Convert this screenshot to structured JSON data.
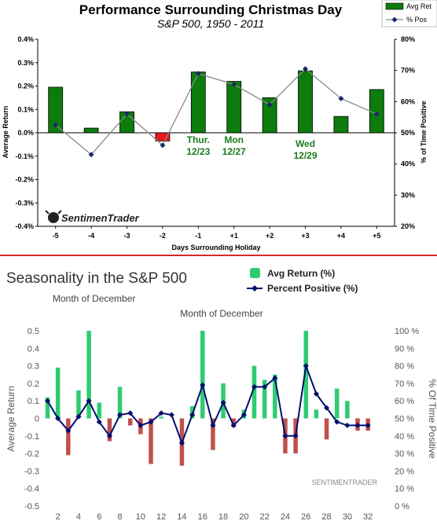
{
  "chart_data": [
    {
      "type": "bar",
      "title": "Performance Surrounding Christmas Day",
      "subtitle": "S&P 500, 1950 - 2011",
      "xlabel": "Days Surrounding Holiday",
      "ylabel": "Average Return",
      "y2label": "% of Time Positive",
      "categories": [
        "-5",
        "-4",
        "-3",
        "-2",
        "-1",
        "+1",
        "+2",
        "+3",
        "+4",
        "+5"
      ],
      "ylim": [
        -0.4,
        0.4
      ],
      "yticks": [
        "0.4%",
        "0.3%",
        "0.2%",
        "0.1%",
        "0.0%",
        "-0.1%",
        "-0.2%",
        "-0.3%",
        "-0.4%"
      ],
      "y2lim": [
        20,
        80
      ],
      "y2ticks": [
        "80%",
        "70%",
        "60%",
        "50%",
        "40%",
        "30%",
        "20%"
      ],
      "series": [
        {
          "name": "Avg Ret",
          "type": "bar",
          "values": [
            0.195,
            0.02,
            0.09,
            -0.035,
            0.26,
            0.22,
            0.15,
            0.265,
            0.07,
            0.185
          ]
        },
        {
          "name": "% Pos",
          "type": "line",
          "values": [
            52.5,
            43,
            56,
            46,
            69,
            65.5,
            59,
            70.5,
            61,
            56
          ]
        }
      ],
      "colors": {
        "positive": "#0c7c0c",
        "negative": "#e8191b",
        "line": "#8a8a8a",
        "marker": "#1a2a6c"
      },
      "annotations": [
        {
          "text": [
            "Thur.",
            "12/23"
          ],
          "category": "-1"
        },
        {
          "text": [
            "Mon",
            "12/27"
          ],
          "category": "+1"
        },
        {
          "text": [
            "Wed",
            "12/29"
          ],
          "category": "+3"
        }
      ],
      "logo": "SentimenTrader",
      "legend": "top-right",
      "grid": false
    },
    {
      "type": "bar",
      "title": "Seasonality in the S&P 500",
      "subtitle": "Month of December",
      "subtitle2": "Month of December",
      "xlabel": "",
      "ylabel": "Average Return",
      "y2label": "% Of Time Positive",
      "x": [
        1,
        2,
        3,
        4,
        5,
        6,
        7,
        8,
        9,
        10,
        11,
        12,
        13,
        14,
        15,
        16,
        17,
        18,
        19,
        20,
        21,
        22,
        23,
        24,
        25,
        26,
        27,
        28,
        29,
        30,
        31,
        32
      ],
      "xticks": [
        "2",
        "4",
        "6",
        "8",
        "10",
        "12",
        "14",
        "16",
        "18",
        "20",
        "22",
        "24",
        "26",
        "28",
        "30",
        "32"
      ],
      "ylim": [
        -0.5,
        0.5
      ],
      "yticks": [
        "0.5",
        "0.4",
        "0.3",
        "0.2",
        "0.1",
        "0",
        "-0.1",
        "-0.2",
        "-0.3",
        "-0.4",
        "-0.5"
      ],
      "y2lim": [
        0,
        100
      ],
      "y2ticks": [
        "100 %",
        "90 %",
        "80 %",
        "70 %",
        "60 %",
        "50 %",
        "40 %",
        "30 %",
        "20 %",
        "10 %",
        "0 %"
      ],
      "series": [
        {
          "name": "Avg Return (%)",
          "type": "bar",
          "values": [
            0.12,
            0.29,
            -0.21,
            0.16,
            0.5,
            0.09,
            -0.13,
            0.18,
            -0.04,
            -0.09,
            -0.26,
            0.01,
            0.0,
            -0.27,
            0.07,
            0.5,
            -0.18,
            0.2,
            -0.05,
            0.05,
            0.3,
            0.22,
            0.25,
            -0.2,
            -0.2,
            0.5,
            0.05,
            -0.12,
            0.17,
            0.1,
            -0.07,
            -0.07
          ]
        },
        {
          "name": "Percent Positive (%)",
          "type": "line",
          "values": [
            60,
            50,
            43,
            51,
            60,
            48,
            40,
            52,
            53,
            46,
            48,
            53,
            52,
            36,
            52,
            69,
            46,
            59,
            46,
            52,
            68,
            68,
            73,
            40,
            40,
            80,
            64,
            56,
            48,
            46,
            46,
            46
          ]
        }
      ],
      "colors": {
        "positive": "#2ecc71",
        "negative": "#c0504d",
        "line": "#000f6e"
      },
      "watermark": "SENTIMENTRADER",
      "legend": "top-center",
      "grid": false
    }
  ]
}
